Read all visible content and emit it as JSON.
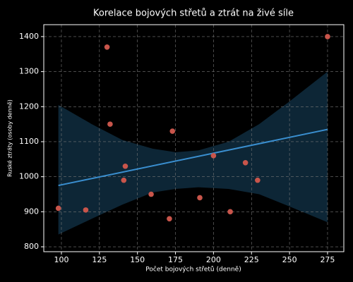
{
  "chart_data": {
    "type": "scatter",
    "title": "Korelace bojových střetů a ztrát na živé síle",
    "x_label": "Počet bojových střetů (denně)",
    "y_label": "Ruské ztráty (osoby denně)",
    "x": [
      98,
      116,
      130,
      132,
      141,
      142,
      159,
      171,
      173,
      191,
      200,
      211,
      221,
      229,
      275
    ],
    "values": [
      910,
      905,
      1370,
      1150,
      990,
      1030,
      950,
      880,
      1130,
      940,
      1060,
      900,
      1040,
      990,
      1400
    ],
    "color": "#c8554b",
    "fit": {
      "x": [
        98,
        275
      ],
      "values": [
        975,
        1135
      ],
      "color": "#3a8fd0"
    },
    "band": {
      "x": [
        98,
        120,
        140,
        160,
        175,
        190,
        210,
        230,
        250,
        275
      ],
      "upper": [
        1205,
        1150,
        1105,
        1080,
        1070,
        1075,
        1100,
        1150,
        1215,
        1300
      ],
      "lower": [
        835,
        880,
        920,
        955,
        965,
        970,
        965,
        950,
        915,
        870
      ],
      "color": "#0e2a3c"
    },
    "xlim": [
      88.4,
      285.7
    ],
    "ylim": [
      786,
      1434
    ],
    "xticks": [
      100,
      125,
      150,
      175,
      200,
      225,
      250,
      275
    ],
    "yticks": [
      800,
      900,
      1000,
      1100,
      1200,
      1300,
      1400
    ],
    "grid": true
  }
}
